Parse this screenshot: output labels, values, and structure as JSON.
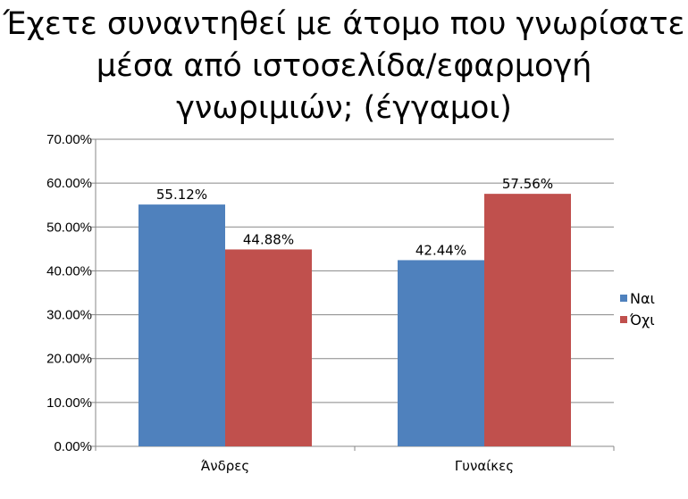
{
  "chart_data": {
    "type": "bar",
    "title_lines": [
      "Έχετε συναντηθεί με άτομο που γνωρίσατε",
      "μέσα από ιστοσελίδα/εφαρμογή",
      "γνωριμιών; (έγγαμοι)"
    ],
    "categories": [
      "Άνδρες",
      "Γυναίκες"
    ],
    "series": [
      {
        "name": "Ναι",
        "values": [
          55.12,
          42.44
        ],
        "labels": [
          "55.12%",
          "42.44%"
        ],
        "color": "#4f81bd"
      },
      {
        "name": "Όχι",
        "values": [
          44.88,
          57.56
        ],
        "labels": [
          "44.88%",
          "57.56%"
        ],
        "color": "#c0504d"
      }
    ],
    "ylim": [
      0,
      70
    ],
    "y_ticks": [
      "0.00%",
      "10.00%",
      "20.00%",
      "30.00%",
      "40.00%",
      "50.00%",
      "60.00%",
      "70.00%"
    ],
    "grid": true,
    "legend_position": "right"
  }
}
